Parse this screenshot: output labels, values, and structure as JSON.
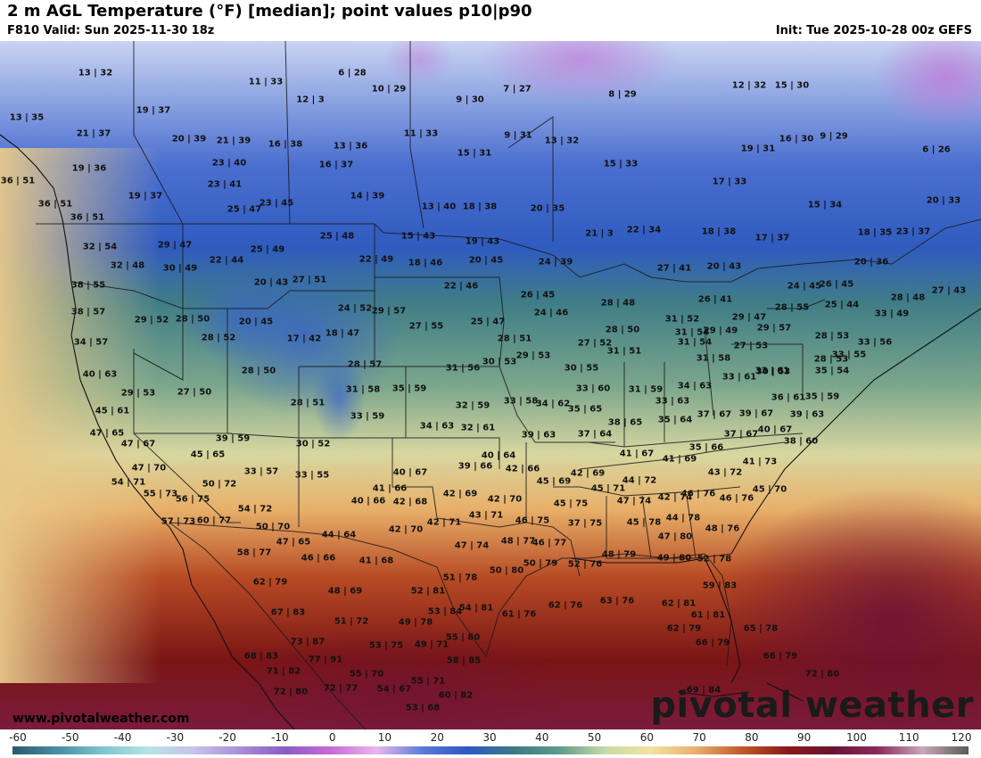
{
  "header": {
    "title": "2 m AGL Temperature (°F) [median]; point values p10|p90",
    "valid": "F810 Valid: Sun 2025-11-30 18z",
    "init": "Init: Tue 2025-10-28 00z GEFS"
  },
  "footer": {
    "website": "www.pivotalweather.com",
    "logo": "pivotal weather"
  },
  "colorbar": {
    "ticks": [
      "-60",
      "-50",
      "-40",
      "-30",
      "-20",
      "-10",
      "0",
      "10",
      "20",
      "30",
      "40",
      "50",
      "60",
      "70",
      "80",
      "90",
      "100",
      "110",
      "120"
    ],
    "colors": [
      "#2a5a6e",
      "#4a8fa3",
      "#7fc6cf",
      "#b9e3e6",
      "#c8c2e8",
      "#a78fd8",
      "#8a5bc8",
      "#c86bd6",
      "#e8b8ee",
      "#5a7bd6",
      "#2f57c4",
      "#3b7a85",
      "#5d9a8a",
      "#c8d9a8",
      "#f2e2a0",
      "#e8b070",
      "#c25a2a",
      "#8a1a1a",
      "#6a1232",
      "#8a2a5a",
      "#c8a8b8",
      "#5a5a5a"
    ]
  },
  "point_values": [
    "13|32",
    "6|28",
    "11|33",
    "10|29",
    "9|30",
    "7|27",
    "8|29",
    "12|32",
    "15|30",
    "13|35",
    "19|37",
    "12|3",
    "21|37",
    "20|39",
    "21|39",
    "16|38",
    "13|36",
    "11|33",
    "9|31",
    "13|32",
    "16|30",
    "9|29",
    "19|31",
    "19|36",
    "23|40",
    "16|37",
    "15|31",
    "15|33",
    "6|26",
    "36|51",
    "23|41",
    "19|37",
    "14|39",
    "17|33",
    "36|51",
    "25|47",
    "23|45",
    "13|40",
    "18|38",
    "20|35",
    "15|34",
    "20|33",
    "36|51",
    "21|3",
    "22|34",
    "18|38",
    "17|37",
    "18|35",
    "23|37",
    "32|54",
    "29|47",
    "25|49",
    "25|48",
    "15|43",
    "19|43",
    "22|44",
    "22|49",
    "18|46",
    "20|45",
    "24|39",
    "27|41",
    "20|43",
    "20|36",
    "32|48",
    "30|49",
    "20|43",
    "27|51",
    "22|46",
    "26|45",
    "24|45",
    "26|45",
    "28|48",
    "27|43",
    "38|55",
    "38|57",
    "29|52",
    "28|50",
    "20|45",
    "24|52",
    "29|57",
    "24|46",
    "28|48",
    "26|41",
    "25|44",
    "33|49",
    "34|57",
    "28|52",
    "17|42",
    "18|47",
    "27|55",
    "25|47",
    "28|51",
    "28|50",
    "31|52",
    "31|54",
    "29|49",
    "29|57",
    "28|53",
    "33|56",
    "29|47",
    "28|55",
    "40|63",
    "28|50",
    "28|57",
    "31|56",
    "30|53",
    "29|53",
    "27|52",
    "31|51",
    "31|54",
    "27|53",
    "31|58",
    "28|53",
    "33|55",
    "35|54",
    "30|55",
    "33|61",
    "29|53",
    "27|50",
    "31|58",
    "35|59",
    "33|60",
    "31|59",
    "34|63",
    "33|61",
    "30|53",
    "36|61",
    "35|59",
    "45|61",
    "28|51",
    "33|59",
    "32|59",
    "33|58",
    "34|62",
    "35|65",
    "33|63",
    "35|64",
    "37|67",
    "39|67",
    "39|63",
    "47|65",
    "47|67",
    "39|59",
    "34|63",
    "32|61",
    "39|63",
    "37|64",
    "38|65",
    "37|67",
    "40|67",
    "38|60",
    "45|65",
    "30|52",
    "40|64",
    "41|67",
    "41|69",
    "35|66",
    "41|73",
    "47|70",
    "33|57",
    "33|55",
    "40|67",
    "39|66",
    "42|66",
    "42|69",
    "45|69",
    "43|72",
    "45|70",
    "54|71",
    "50|72",
    "41|66",
    "42|69",
    "45|71",
    "44|72",
    "46|76",
    "55|73",
    "56|75",
    "54|72",
    "40|66",
    "42|68",
    "42|70",
    "45|75",
    "47|74",
    "42|74",
    "46|76",
    "57|73",
    "60|77",
    "50|70",
    "42|71",
    "43|71",
    "46|75",
    "37|75",
    "45|78",
    "44|78",
    "48|76",
    "47|65",
    "44|64",
    "42|70",
    "47|74",
    "48|77",
    "46|77",
    "47|80",
    "58|77",
    "46|66",
    "41|68",
    "50|79",
    "48|79",
    "49|80",
    "52|78",
    "51|78",
    "50|80",
    "52|76",
    "62|79",
    "48|69",
    "52|81",
    "59|83",
    "67|83",
    "53|84",
    "54|81",
    "61|76",
    "62|76",
    "63|76",
    "62|81",
    "61|81",
    "51|72",
    "49|78",
    "62|79",
    "65|78",
    "73|87",
    "53|75",
    "49|71",
    "55|80",
    "66|79",
    "68|83",
    "77|91",
    "58|85",
    "66|79",
    "71|82",
    "55|70",
    "55|71",
    "72|80",
    "72|80",
    "72|77",
    "54|67",
    "60|82",
    "69|84",
    "53|68"
  ]
}
